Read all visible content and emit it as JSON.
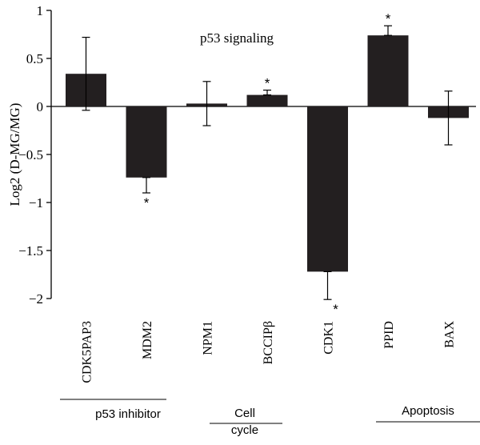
{
  "chart_data": {
    "type": "bar",
    "title": "p53 signaling",
    "xlabel": "",
    "ylabel": "Log2 (D-MG/MG)",
    "ylim": [
      -2,
      1
    ],
    "yticks": [
      1,
      0.5,
      0,
      -0.5,
      -1,
      -1.5,
      -2
    ],
    "ytick_labels": [
      "1",
      "0.5",
      "0",
      "−0.5",
      "−1",
      "−1.5",
      "−2"
    ],
    "categories": [
      "CDK5PAP3",
      "MDM2",
      "NPM1",
      "BCCIPβ",
      "CDK1",
      "PPID",
      "BAX"
    ],
    "values": [
      0.34,
      -0.74,
      0.03,
      0.12,
      -1.72,
      0.74,
      -0.12
    ],
    "error_upper": [
      0.72,
      -0.74,
      0.26,
      0.17,
      -1.72,
      0.84,
      0.16
    ],
    "error_lower": [
      -0.04,
      -0.9,
      -0.2,
      0.12,
      -2.01,
      0.74,
      -0.4
    ],
    "significant": [
      false,
      true,
      false,
      true,
      true,
      true,
      false
    ],
    "significance_marker": "*",
    "groups": [
      {
        "label": "p53 inhibitor",
        "categories": [
          "CDK5PAP3",
          "MDM2"
        ]
      },
      {
        "label_lines": [
          "Cell",
          "cycle"
        ],
        "categories": [
          "NPM1",
          "BCCIPβ"
        ]
      },
      {
        "label": "",
        "categories": [
          "CDK1"
        ]
      },
      {
        "label": "Apoptosis",
        "categories": [
          "PPID",
          "BAX"
        ]
      }
    ],
    "grid": false,
    "legend": "none",
    "bar_color": "#231f20"
  }
}
